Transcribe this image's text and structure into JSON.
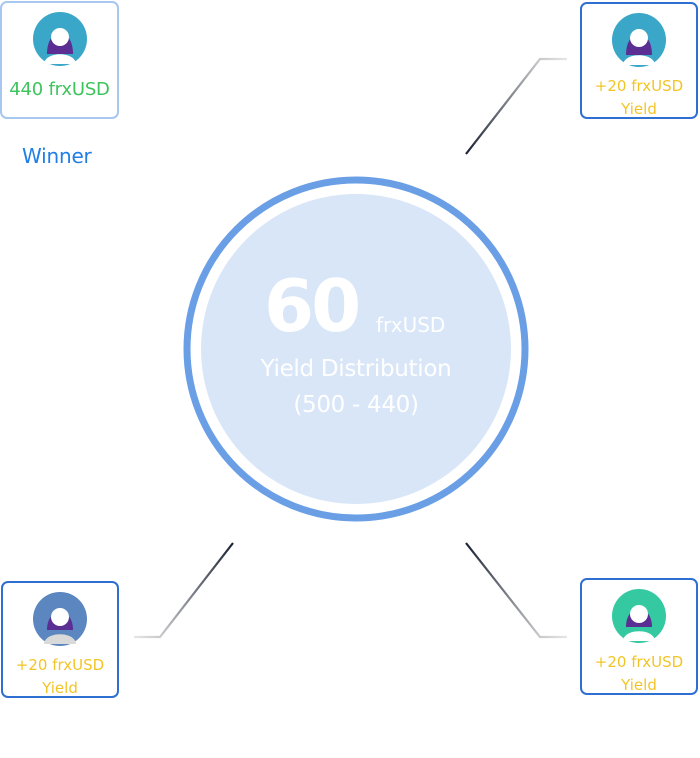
{
  "winner": {
    "amount": "440 frxUSD",
    "label": "Winner"
  },
  "center": {
    "amount": "60",
    "unit": "frxUSD",
    "line1": "Yield Distribution",
    "line2": "(500 - 440)"
  },
  "peers": [
    {
      "amount": "+20 frxUSD",
      "yield_label": "Yield",
      "avatar_color": "#3aa6c8"
    },
    {
      "amount": "+20 frxUSD",
      "yield_label": "Yield",
      "avatar_color": "#5b86c0"
    },
    {
      "amount": "+20 frxUSD",
      "yield_label": "Yield",
      "avatar_color": "#35c9a2"
    }
  ],
  "colors": {
    "card_border": "#2f6fd1",
    "winner_amount": "#3ec45c",
    "yield_text": "#f2c526",
    "winner_label": "#1f7fe6",
    "circle_ring": "#6a9fe6",
    "circle_fill": "#d8e6f8"
  }
}
